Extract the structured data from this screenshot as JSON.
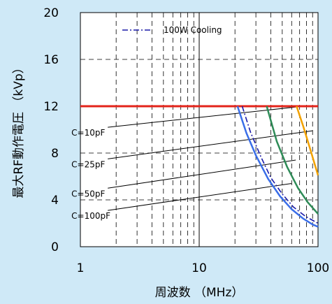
{
  "chart_data": {
    "type": "line",
    "xlabel": "周波数 （MHz）",
    "ylabel": "最大RF動作電圧 （kVp）",
    "xscale": "log",
    "xlim": [
      1,
      100
    ],
    "ylim": [
      0,
      20
    ],
    "xticks": [
      1,
      10,
      100
    ],
    "xtick_labels": [
      "1",
      "10",
      "100"
    ],
    "yticks": [
      0,
      4,
      8,
      12,
      16,
      20
    ],
    "ytick_labels": [
      "0",
      "4",
      "8",
      "12",
      "16",
      "20"
    ],
    "grid": true,
    "legend": {
      "position": "top-center",
      "entries": [
        {
          "label": "100W Cooling",
          "style": "dash-dot",
          "color": "#1a1aa8"
        }
      ]
    },
    "series": [
      {
        "color": "#e3241b",
        "style": "solid",
        "x": [
          1,
          100
        ],
        "y": [
          12,
          12
        ]
      },
      {
        "color": "#f2a100",
        "style": "solid",
        "x": [
          66,
          75,
          85,
          100
        ],
        "y": [
          12,
          10.3,
          8.5,
          6.1
        ]
      },
      {
        "color": "#2e8b57",
        "style": "solid",
        "x": [
          37,
          45,
          55,
          68,
          82,
          100
        ],
        "y": [
          12,
          9.0,
          6.8,
          5.0,
          3.8,
          2.8
        ]
      },
      {
        "color": "#3a6ee8",
        "style": "solid",
        "x": [
          21,
          25,
          30,
          38,
          48,
          60,
          75,
          90,
          100
        ],
        "y": [
          12,
          9.7,
          7.8,
          5.8,
          4.3,
          3.2,
          2.4,
          1.9,
          1.7
        ]
      },
      {
        "color": "#1a1aa8",
        "style": "dash-dot",
        "x": [
          23,
          27,
          33,
          40,
          50,
          62,
          78,
          100
        ],
        "y": [
          12,
          9.8,
          7.7,
          5.9,
          4.5,
          3.4,
          2.6,
          2.0
        ]
      }
    ],
    "annotations": [
      {
        "text": "C=10pF",
        "x0": 1.7,
        "y0": 10.2,
        "x1": 75,
        "y1": 12.0
      },
      {
        "text": "C=25pF",
        "x0": 1.7,
        "y0": 7.5,
        "x1": 90,
        "y1": 9.9
      },
      {
        "text": "C=50pF",
        "x0": 1.7,
        "y0": 5.0,
        "x1": 65,
        "y1": 7.4
      },
      {
        "text": "C=100pF",
        "x0": 1.7,
        "y0": 3.1,
        "x1": 60,
        "y1": 5.4
      }
    ]
  }
}
